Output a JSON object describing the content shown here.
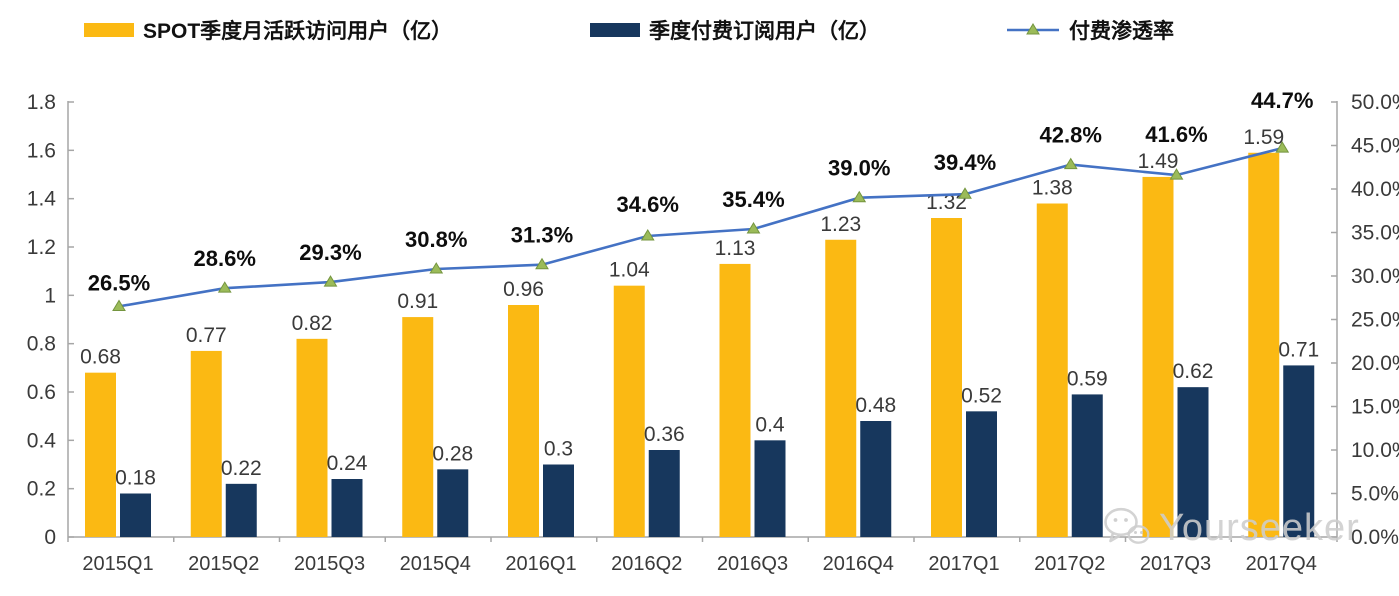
{
  "chart_data": {
    "type": "bar",
    "title": "",
    "categories": [
      "2015Q1",
      "2015Q2",
      "2015Q3",
      "2015Q4",
      "2016Q1",
      "2016Q2",
      "2016Q3",
      "2016Q4",
      "2017Q1",
      "2017Q2",
      "2017Q3",
      "2017Q4"
    ],
    "series": [
      {
        "name": "SPOT季度月活跃访问用户（亿）",
        "type": "bar",
        "axis": "left",
        "color": "#FBB913",
        "values": [
          0.68,
          0.77,
          0.82,
          0.91,
          0.96,
          1.04,
          1.13,
          1.23,
          1.32,
          1.38,
          1.49,
          1.59
        ],
        "labels": [
          "0.68",
          "0.77",
          "0.82",
          "0.91",
          "0.96",
          "1.04",
          "1.13",
          "1.23",
          "1.32",
          "1.38",
          "1.49",
          "1.59"
        ]
      },
      {
        "name": "季度付费订阅用户（亿）",
        "type": "bar",
        "axis": "left",
        "color": "#17375D",
        "values": [
          0.18,
          0.22,
          0.24,
          0.28,
          0.3,
          0.36,
          0.4,
          0.48,
          0.52,
          0.59,
          0.62,
          0.71
        ],
        "labels": [
          "0.18",
          "0.22",
          "0.24",
          "0.28",
          "0.3",
          "0.36",
          "0.4",
          "0.48",
          "0.52",
          "0.59",
          "0.62",
          "0.71"
        ]
      },
      {
        "name": "付费渗透率",
        "type": "line",
        "axis": "right",
        "color": "#4472C4",
        "marker": "triangle",
        "marker_color": "#9BBB59",
        "values": [
          26.5,
          28.6,
          29.3,
          30.8,
          31.3,
          34.6,
          35.4,
          39.0,
          39.4,
          42.8,
          41.6,
          44.7
        ],
        "labels": [
          "26.5%",
          "28.6%",
          "29.3%",
          "30.8%",
          "31.3%",
          "34.6%",
          "35.4%",
          "39.0%",
          "39.4%",
          "42.8%",
          "41.6%",
          "44.7%"
        ]
      }
    ],
    "left_axis": {
      "min": 0,
      "max": 1.8,
      "step": 0.2,
      "ticks": [
        "0",
        "0.2",
        "0.4",
        "0.6",
        "0.8",
        "1",
        "1.2",
        "1.4",
        "1.6",
        "1.8"
      ]
    },
    "right_axis": {
      "min": 0,
      "max": 50,
      "step": 5,
      "ticks": [
        "0.0%",
        "5.0%",
        "10.0%",
        "15.0%",
        "20.0%",
        "25.0%",
        "30.0%",
        "35.0%",
        "40.0%",
        "45.0%",
        "50.0%"
      ]
    },
    "grid": false,
    "legend_position": "top",
    "axis_color": "#A6A6A6"
  },
  "watermark": {
    "label": "Yourseeker",
    "icon": "wechat-icon"
  }
}
